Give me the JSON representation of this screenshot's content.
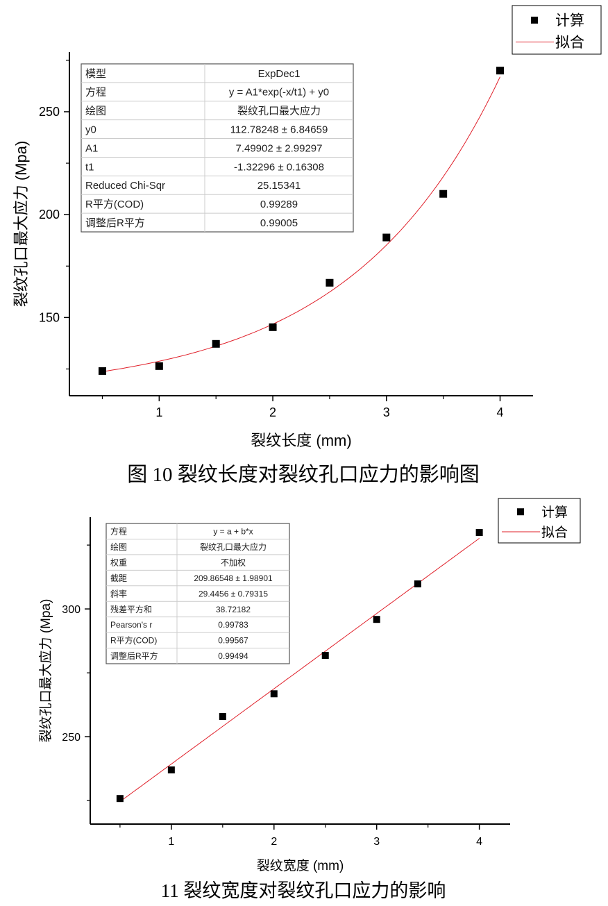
{
  "colors": {
    "fit": "#e0202a",
    "marker": "#000000",
    "axis": "#000000",
    "table_border": "#555555",
    "table_grid": "#cccccc"
  },
  "chart_data": [
    {
      "type": "scatter",
      "xlabel": "裂纹长度 (mm)",
      "ylabel": "裂纹孔口最大应力 (Mpa)",
      "caption": "图  10 裂纹长度对裂纹孔口应力的影响图",
      "xlim": [
        0.21,
        4.29
      ],
      "ylim": [
        112,
        279
      ],
      "xticks": [
        1,
        2,
        3,
        4
      ],
      "xminor": [
        0.5,
        1.5,
        2.5,
        3.5
      ],
      "yticks": [
        150,
        200,
        250
      ],
      "yminor": [
        125,
        175,
        225,
        275
      ],
      "grid": false,
      "legend_position": "top-right",
      "legend": [
        "计算",
        "拟合"
      ],
      "series": [
        {
          "name": "计算",
          "kind": "points",
          "x": [
            0.5,
            1,
            1.5,
            2,
            2.5,
            3,
            3.5,
            4
          ],
          "y": [
            124,
            126.4,
            137.2,
            145.3,
            166.9,
            188.9,
            210.1,
            270
          ]
        },
        {
          "name": "拟合",
          "kind": "expdec1",
          "params": {
            "y0": 112.78248,
            "A1": 7.49902,
            "t1": -1.32296
          },
          "xrange": [
            0.5,
            4
          ]
        }
      ],
      "table": [
        [
          "模型",
          "ExpDec1"
        ],
        [
          "方程",
          "y = A1*exp(-x/t1) + y0"
        ],
        [
          "绘图",
          "裂纹孔口最大应力"
        ],
        [
          "y0",
          "112.78248 ± 6.84659"
        ],
        [
          "A1",
          "7.49902 ± 2.99297"
        ],
        [
          "t1",
          "-1.32296 ± 0.16308"
        ],
        [
          "Reduced Chi-Sqr",
          "25.15341"
        ],
        [
          "R平方(COD)",
          "0.99289"
        ],
        [
          "调整后R平方",
          "0.99005"
        ]
      ]
    },
    {
      "type": "scatter",
      "xlabel": "裂纹宽度 (mm)",
      "ylabel": "裂纹孔口最大应力 (Mpa)",
      "caption": "11 裂纹宽度对裂纹孔口应力的影响",
      "xlim": [
        0.21,
        4.3
      ],
      "ylim": [
        215.8,
        335.9
      ],
      "xticks": [
        1,
        2,
        3,
        4
      ],
      "xminor": [
        0.5,
        1.5,
        2.5,
        3.5
      ],
      "yticks": [
        250,
        300
      ],
      "yminor": [
        225,
        275,
        325
      ],
      "grid": false,
      "legend_position": "top-right",
      "legend": [
        "计算",
        "拟合"
      ],
      "series": [
        {
          "name": "计算",
          "kind": "points",
          "x": [
            0.5,
            1,
            1.5,
            2,
            2.5,
            3,
            3.4,
            4
          ],
          "y": [
            225.8,
            237,
            257.9,
            266.8,
            281.8,
            295.9,
            309.8,
            329.9
          ]
        },
        {
          "name": "拟合",
          "kind": "linear",
          "params": {
            "a": 209.86548,
            "b": 29.4456
          },
          "xrange": [
            0.5,
            4
          ]
        }
      ],
      "table": [
        [
          "方程",
          "y = a + b*x"
        ],
        [
          "绘图",
          "裂纹孔口最大应力"
        ],
        [
          "权重",
          "不加权"
        ],
        [
          "截距",
          "209.86548 ± 1.98901"
        ],
        [
          "斜率",
          "29.4456 ± 0.79315"
        ],
        [
          "残差平方和",
          "38.72182"
        ],
        [
          "Pearson's r",
          "0.99783"
        ],
        [
          "R平方(COD)",
          "0.99567"
        ],
        [
          "调整后R平方",
          "0.99494"
        ]
      ]
    }
  ]
}
